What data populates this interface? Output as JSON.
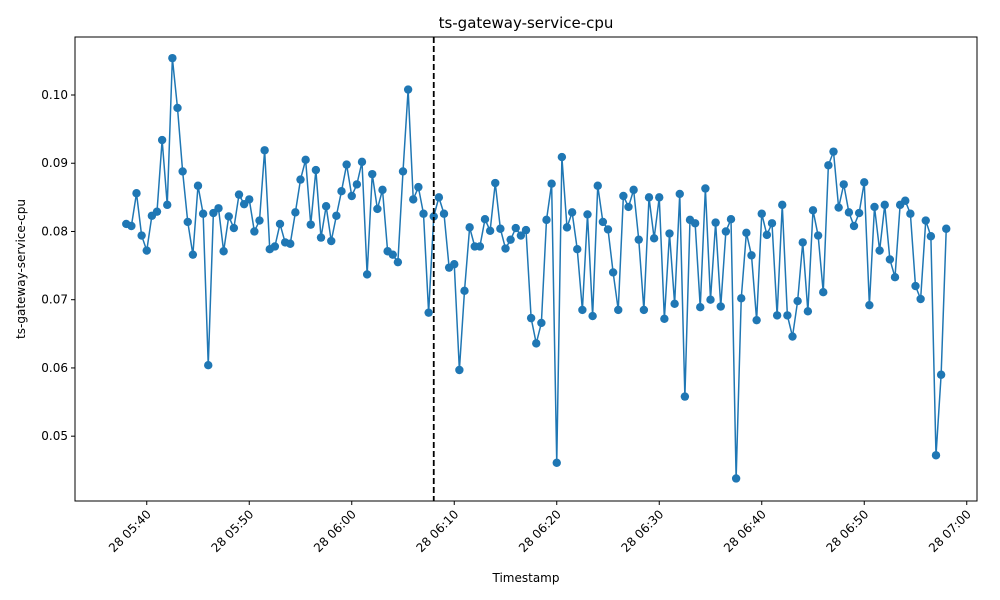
{
  "chart_data": {
    "type": "line",
    "title": "ts-gateway-service-cpu",
    "xlabel": "Timestamp",
    "ylabel": "ts-gateway-service-cpu",
    "x_start": "28 05:38",
    "x_step_minutes": 0.5,
    "xlim": [
      "28 05:33",
      "28 07:01"
    ],
    "ylim": [
      0.0405,
      0.1085
    ],
    "x_ticks": [
      {
        "value": "28 05:40",
        "label": "28 05:40"
      },
      {
        "value": "28 05:50",
        "label": "28 05:50"
      },
      {
        "value": "28 06:00",
        "label": "28 06:00"
      },
      {
        "value": "28 06:10",
        "label": "28 06:10"
      },
      {
        "value": "28 06:20",
        "label": "28 06:20"
      },
      {
        "value": "28 06:30",
        "label": "28 06:30"
      },
      {
        "value": "28 06:40",
        "label": "28 06:40"
      },
      {
        "value": "28 06:50",
        "label": "28 06:50"
      },
      {
        "value": "28 07:00",
        "label": "28 07:00"
      }
    ],
    "y_ticks": [
      {
        "value": 0.05,
        "label": "0.05"
      },
      {
        "value": 0.06,
        "label": "0.06"
      },
      {
        "value": 0.07,
        "label": "0.07"
      },
      {
        "value": 0.08,
        "label": "0.08"
      },
      {
        "value": 0.09,
        "label": "0.09"
      },
      {
        "value": 0.1,
        "label": "0.10"
      }
    ],
    "vline": {
      "x": "28 06:08",
      "style": "dashed",
      "color": "#000000"
    },
    "grid": false,
    "series": [
      {
        "color": "#1f77b4",
        "marker": "circle",
        "values": [
          0.0811,
          0.0808,
          0.0856,
          0.0794,
          0.0772,
          0.0823,
          0.0829,
          0.0934,
          0.0839,
          0.1054,
          0.0981,
          0.0888,
          0.0814,
          0.0766,
          0.0867,
          0.0826,
          0.0604,
          0.0827,
          0.0834,
          0.0771,
          0.0822,
          0.0805,
          0.0854,
          0.084,
          0.0847,
          0.08,
          0.0816,
          0.0919,
          0.0774,
          0.0778,
          0.0811,
          0.0784,
          0.0782,
          0.0828,
          0.0876,
          0.0905,
          0.081,
          0.089,
          0.0791,
          0.0837,
          0.0786,
          0.0823,
          0.0859,
          0.0898,
          0.0852,
          0.0869,
          0.0902,
          0.0737,
          0.0884,
          0.0833,
          0.0861,
          0.0771,
          0.0766,
          0.0755,
          0.0888,
          0.1008,
          0.0847,
          0.0865,
          0.0826,
          0.0681,
          0.0822,
          0.085,
          0.0826,
          0.0747,
          0.0752,
          0.0597,
          0.0713,
          0.0806,
          0.0778,
          0.0778,
          0.0818,
          0.0801,
          0.0871,
          0.0804,
          0.0775,
          0.0788,
          0.0805,
          0.0794,
          0.0802,
          0.0673,
          0.0636,
          0.0666,
          0.0817,
          0.087,
          0.0461,
          0.0909,
          0.0806,
          0.0828,
          0.0774,
          0.0685,
          0.0825,
          0.0676,
          0.0867,
          0.0814,
          0.0803,
          0.074,
          0.0685,
          0.0852,
          0.0836,
          0.0861,
          0.0788,
          0.0685,
          0.085,
          0.079,
          0.085,
          0.0672,
          0.0797,
          0.0694,
          0.0855,
          0.0558,
          0.0817,
          0.0812,
          0.0689,
          0.0863,
          0.07,
          0.0813,
          0.069,
          0.08,
          0.0818,
          0.0438,
          0.0702,
          0.0798,
          0.0765,
          0.067,
          0.0826,
          0.0795,
          0.0812,
          0.0677,
          0.0839,
          0.0677,
          0.0646,
          0.0698,
          0.0784,
          0.0683,
          0.0831,
          0.0794,
          0.0711,
          0.0897,
          0.0917,
          0.0835,
          0.0869,
          0.0828,
          0.0808,
          0.0827,
          0.0872,
          0.0692,
          0.0836,
          0.0772,
          0.0839,
          0.0759,
          0.0733,
          0.0839,
          0.0845,
          0.0826,
          0.072,
          0.0701,
          0.0816,
          0.0793,
          0.0472,
          0.059,
          0.0804
        ]
      }
    ]
  }
}
